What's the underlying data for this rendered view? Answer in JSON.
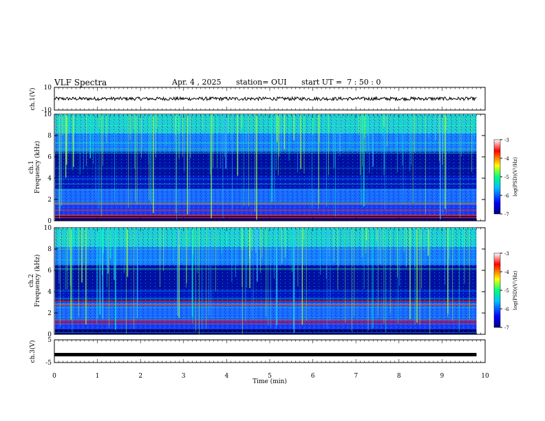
{
  "header": {
    "title": "VLF Spectra",
    "date": "Apr. 4 , 2025",
    "station": "station= OUI",
    "start_ut": "start UT =  7 : 50 : 0"
  },
  "chart_data": [
    {
      "type": "line",
      "panel": "ch1-waveform",
      "ylabel": "ch.1(V)",
      "yticks": [
        "10",
        "-10"
      ],
      "ylim": [
        -10,
        10
      ],
      "x": [
        0,
        9.8
      ],
      "series": [
        {
          "values_range": [
            -1.5,
            1.5
          ]
        }
      ]
    },
    {
      "type": "heatmap",
      "panel": "ch1-spectrogram",
      "ylabel": "ch.1 Frequency (kHz)",
      "yticks": [
        "0",
        "2",
        "4",
        "6",
        "8",
        "10"
      ],
      "ylim": [
        0,
        10
      ],
      "colorbar": {
        "label": "log(PSD)(V²/Hz)",
        "ticks": [
          "-3",
          "-4",
          "-5",
          "-6",
          "-7"
        ],
        "range": [
          -7,
          -3
        ]
      },
      "lines_khz": [
        0.3,
        0.5,
        1.0,
        1.6
      ]
    },
    {
      "type": "heatmap",
      "panel": "ch2-spectrogram",
      "ylabel": "ch.2 Frequency (kHz)",
      "yticks": [
        "0",
        "2",
        "4",
        "6",
        "8",
        "10"
      ],
      "ylim": [
        0,
        10
      ],
      "colorbar": {
        "label": "log(PSD)(V²/Hz)",
        "ticks": [
          "-3",
          "-4",
          "-5",
          "-6",
          "-7"
        ],
        "range": [
          -7,
          -3
        ]
      },
      "lines_khz": [
        1.0,
        1.3,
        2.7,
        3.1
      ]
    },
    {
      "type": "line",
      "panel": "ch3-waveform",
      "ylabel": "ch.3(V)",
      "yticks": [
        "5",
        "-5"
      ],
      "ylim": [
        -5,
        5
      ],
      "x": [
        0,
        9.8
      ],
      "series": [
        {
          "values": [
            -1.5,
            -1.5
          ]
        }
      ]
    }
  ],
  "xaxis": {
    "label": "Time (min)",
    "ticks": [
      "0",
      "1",
      "2",
      "3",
      "4",
      "5",
      "6",
      "7",
      "8",
      "9",
      "10"
    ],
    "xlim": [
      0,
      10
    ]
  },
  "colors": {
    "colormap": [
      "#00007f",
      "#0000ff",
      "#00bfff",
      "#00ff7f",
      "#ffff00",
      "#ff0000",
      "#ffffff"
    ]
  }
}
